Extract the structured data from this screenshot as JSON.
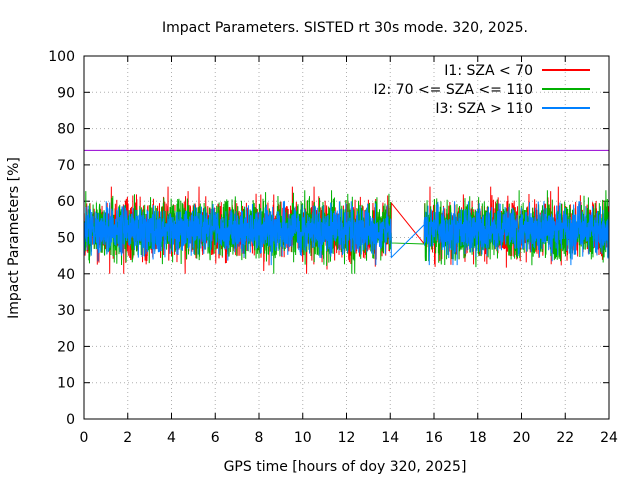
{
  "chart_data": {
    "type": "line",
    "title": "Impact Parameters. SISTED rt 30s mode. 320, 2025.",
    "xlabel": "GPS time [hours of doy 320, 2025]",
    "ylabel": "Impact Parameters [%]",
    "xlim": [
      0,
      24
    ],
    "ylim": [
      0,
      100
    ],
    "xticks": [
      0,
      2,
      4,
      6,
      8,
      10,
      12,
      14,
      16,
      18,
      20,
      22,
      24
    ],
    "yticks": [
      0,
      10,
      20,
      30,
      40,
      50,
      60,
      70,
      80,
      90,
      100
    ],
    "grid": true,
    "legend_position": "top-right",
    "reference_line": {
      "y": 74,
      "color": "#9400d3"
    },
    "gap": [
      14.05,
      15.55
    ],
    "series": [
      {
        "name": "I1: SZA < 70",
        "color": "#ff0000",
        "center": 52,
        "spread": 5.0,
        "min": 37,
        "max": 68,
        "gap_end_value": 59.5
      },
      {
        "name": "I2: 70 <= SZA <= 110",
        "color": "#00b000",
        "center": 52,
        "spread": 5.0,
        "min": 37,
        "max": 63,
        "gap_end_value": 48.5
      },
      {
        "name": "I3: SZA > 110",
        "color": "#0080ff",
        "center": 52,
        "spread": 4.0,
        "min": 40,
        "max": 60,
        "gap_end_value": 44.5
      }
    ]
  }
}
